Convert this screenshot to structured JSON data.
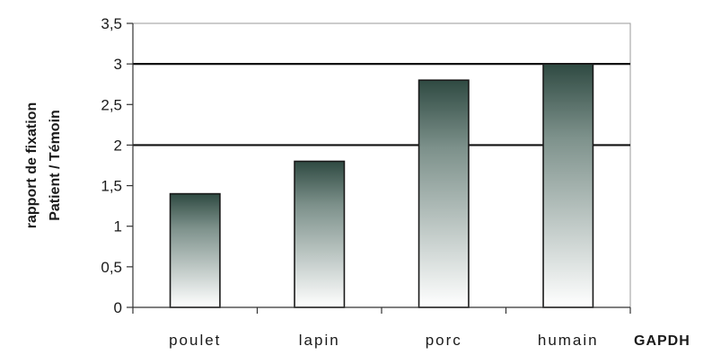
{
  "chart_data": {
    "type": "bar",
    "categories": [
      "poulet",
      "lapin",
      "porc",
      "humain"
    ],
    "values": [
      1.4,
      1.8,
      2.8,
      3.0
    ],
    "title": "",
    "xlabel": "GAPDH",
    "ylabel_lines": [
      "rapport de fixation",
      "Patient / Témoin"
    ],
    "ylim": [
      0,
      3.5
    ],
    "yticks": [
      "0",
      "0,5",
      "1",
      "1,5",
      "2",
      "2,5",
      "3",
      "3,5"
    ],
    "reference_lines": [
      2,
      3
    ],
    "grid": false,
    "legend": "none",
    "colors": {
      "bar_top": "#2f4a42",
      "bar_bottom": "#ffffff",
      "outline": "#1a1a1a",
      "plot_border": "#9a9a9a"
    }
  }
}
